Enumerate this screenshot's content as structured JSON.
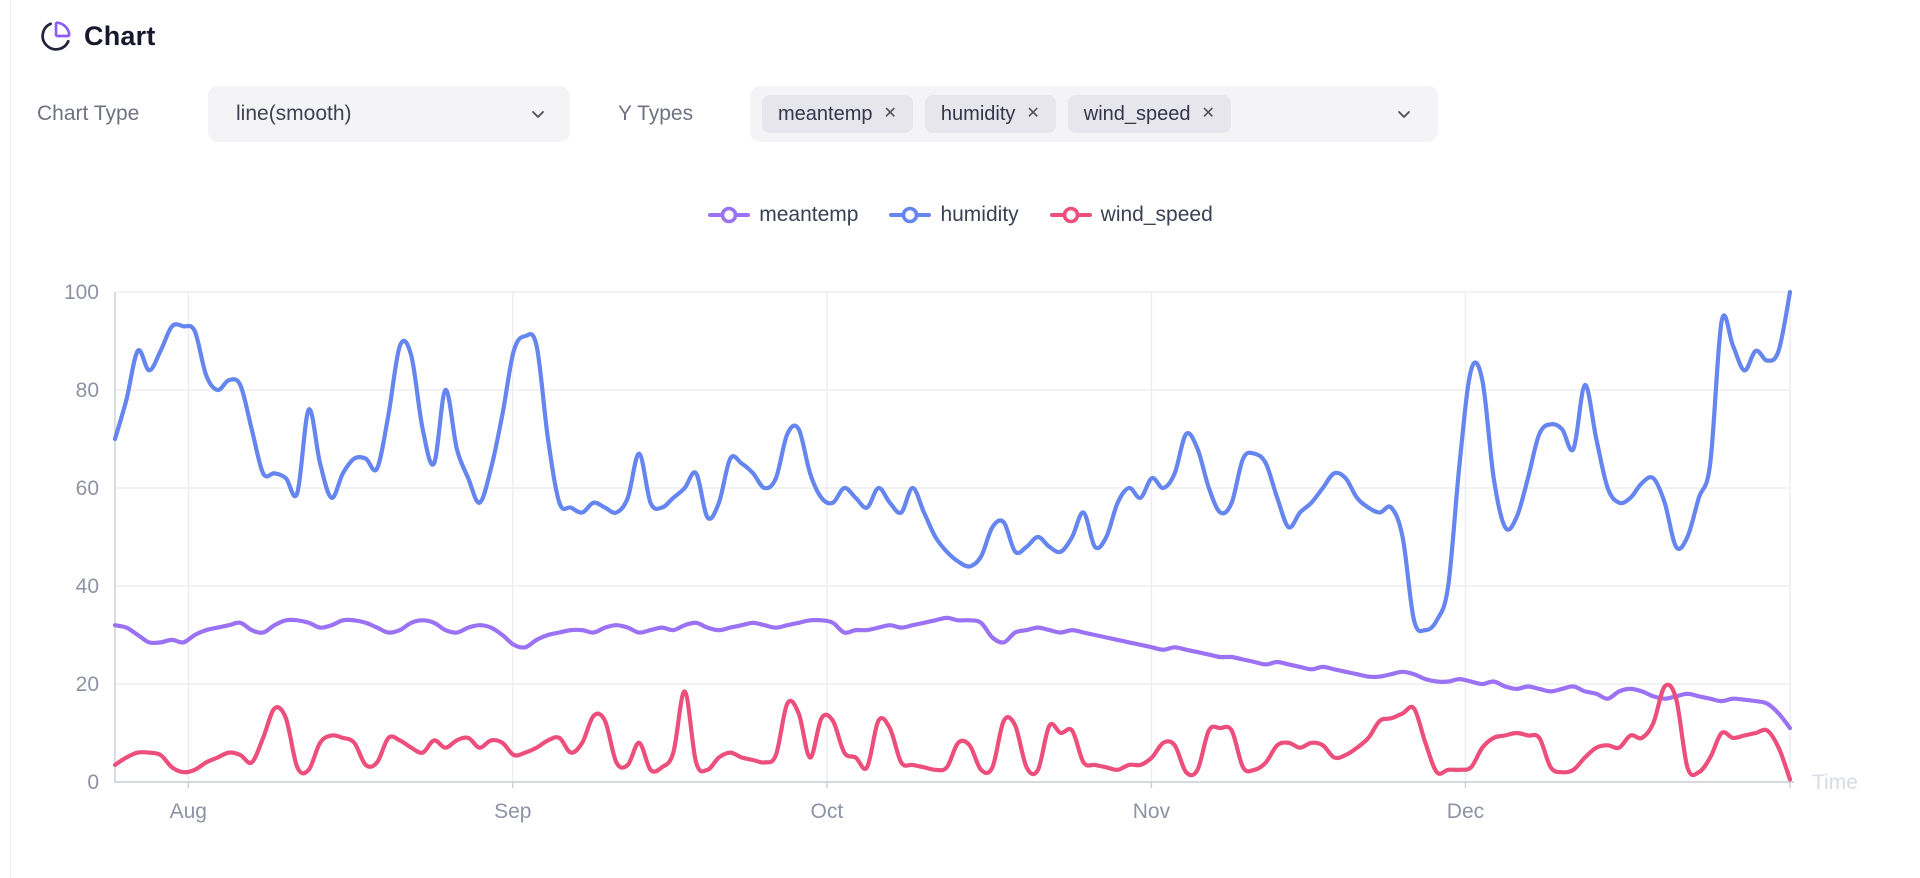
{
  "page": {
    "title": "Chart"
  },
  "controls": {
    "chart_type_label": "Chart Type",
    "chart_type_value": "line(smooth)",
    "y_types_label": "Y Types",
    "y_types_selected": [
      {
        "label": "meantemp"
      },
      {
        "label": "humidity"
      },
      {
        "label": "wind_speed"
      }
    ],
    "remove_icon": "✕"
  },
  "chart_data": {
    "type": "line",
    "smooth": true,
    "legend_position": "top",
    "grid": true,
    "x_axis": {
      "name": "Time",
      "tick_labels": [
        "Aug",
        "Sep",
        "Oct",
        "Nov",
        "Dec"
      ],
      "tick_day_offsets": [
        7,
        38,
        68,
        99,
        129
      ],
      "span_days": 160
    },
    "y_axis": {
      "min": 0,
      "max": 100,
      "interval": 20,
      "tick_labels": [
        "0",
        "20",
        "40",
        "60",
        "80",
        "100"
      ]
    },
    "series": [
      {
        "name": "meantemp",
        "color": "#9b72f3",
        "values": [
          32,
          31.5,
          30,
          28.5,
          28.5,
          29,
          28.5,
          30,
          31,
          31.5,
          32,
          32.5,
          31,
          30.5,
          32,
          33,
          33,
          32.5,
          31.5,
          32,
          33,
          33,
          32.5,
          31.5,
          30.5,
          31,
          32.5,
          33,
          32.5,
          31,
          30.5,
          31.5,
          32,
          31.5,
          30,
          28,
          27.5,
          29,
          30,
          30.5,
          31,
          31,
          30.5,
          31.5,
          32,
          31.5,
          30.5,
          31,
          31.5,
          31,
          32,
          32.5,
          31.5,
          31,
          31.5,
          32,
          32.5,
          32,
          31.5,
          32,
          32.5,
          33,
          33,
          32.5,
          30.5,
          31,
          31,
          31.5,
          32,
          31.5,
          32,
          32.5,
          33,
          33.5,
          33,
          33,
          32.5,
          29.5,
          28.5,
          30.5,
          31,
          31.5,
          31,
          30.5,
          31,
          30.5,
          30,
          29.5,
          29,
          28.5,
          28,
          27.5,
          27,
          27.5,
          27,
          26.5,
          26,
          25.5,
          25.5,
          25,
          24.5,
          24,
          24.5,
          24,
          23.5,
          23,
          23.5,
          23,
          22.5,
          22,
          21.5,
          21.5,
          22,
          22.5,
          22,
          21,
          20.5,
          20.5,
          21,
          20.5,
          20,
          20.5,
          19.5,
          19,
          19.5,
          19,
          18.5,
          19,
          19.5,
          18.5,
          18,
          17,
          18.5,
          19,
          18.5,
          17.5,
          17,
          17.5,
          18,
          17.5,
          17,
          16.5,
          17,
          16.8,
          16.5,
          16,
          14,
          11
        ]
      },
      {
        "name": "humidity",
        "color": "#6585ef",
        "values": [
          70,
          78,
          88,
          84,
          88,
          93,
          93,
          92,
          83,
          80,
          82,
          81,
          72,
          63,
          63,
          62,
          59,
          76,
          65,
          58,
          63,
          66,
          66,
          64,
          75,
          89,
          87,
          72,
          65,
          80,
          68,
          62,
          57,
          64,
          75,
          88,
          91,
          89,
          70,
          57,
          56,
          55,
          57,
          56,
          55,
          58,
          67,
          57,
          56,
          58,
          60,
          63,
          54,
          57,
          66,
          65,
          63,
          60,
          62,
          71,
          72,
          63,
          58,
          57,
          60,
          58,
          56,
          60,
          57,
          55,
          60,
          55,
          50,
          47,
          45,
          44,
          46,
          52,
          53,
          47,
          48,
          50,
          48,
          47,
          50,
          55,
          48,
          50,
          57,
          60,
          58,
          62,
          60,
          63,
          71,
          68,
          60,
          55,
          57,
          66,
          67,
          65,
          58,
          52,
          55,
          57,
          60,
          63,
          62,
          58,
          56,
          55,
          56,
          50,
          33,
          31,
          33,
          40,
          65,
          84,
          82,
          62,
          52,
          54,
          62,
          71,
          73,
          72,
          68,
          81,
          70,
          60,
          57,
          58,
          61,
          62,
          57,
          48,
          50,
          58,
          65,
          94,
          89,
          84,
          88,
          86,
          88,
          100
        ]
      },
      {
        "name": "wind_speed",
        "color": "#ed4f7c",
        "values": [
          3.5,
          5,
          6,
          6,
          5.5,
          3,
          2,
          2.5,
          4,
          5,
          6,
          5.5,
          4,
          9,
          15,
          13,
          3,
          2.5,
          8,
          9.5,
          9,
          8,
          3.5,
          4,
          9,
          8.5,
          7,
          6,
          8.5,
          7,
          8.5,
          9,
          7,
          8.5,
          8,
          5.5,
          6,
          7,
          8.5,
          9,
          6,
          8,
          13.5,
          12.5,
          4,
          3.5,
          8,
          2.5,
          3,
          6,
          18.5,
          4,
          2.5,
          5,
          6,
          5,
          4.5,
          4,
          5.5,
          16,
          14,
          5,
          13,
          12.5,
          6,
          5,
          3,
          12.5,
          11,
          4,
          3.5,
          3,
          2.5,
          3,
          8,
          7.5,
          2.5,
          3,
          12.5,
          11.5,
          3,
          2.5,
          11.5,
          10,
          10.5,
          4,
          3.5,
          3,
          2.5,
          3.5,
          3.5,
          5,
          8,
          7.5,
          2,
          2.5,
          10.5,
          11,
          10.5,
          3,
          2.5,
          4,
          7.5,
          8,
          7,
          8,
          7.5,
          5,
          5.5,
          7,
          9,
          12.5,
          13,
          14,
          15,
          8,
          2,
          2.5,
          2.5,
          3,
          7,
          9,
          9.5,
          10,
          9.5,
          9,
          3,
          2,
          2.5,
          5,
          7,
          7.5,
          7,
          9.5,
          9,
          12,
          19.5,
          17,
          3,
          2,
          5,
          10,
          9,
          9.5,
          10,
          10.5,
          7,
          0.5
        ]
      }
    ]
  },
  "theme": {
    "title_color": "#17172e",
    "icon_dark": "#23233c",
    "icon_accent": "#8b5cf6",
    "label_gray": "#6f7280",
    "control_bg": "#f4f4f6",
    "tag_bg": "#e6e6ec",
    "grid_color": "#ededf1",
    "axis_color": "#c9cdd6",
    "tick_label_color": "#8e93a4",
    "axis_name_color": "#d9dbe3"
  }
}
